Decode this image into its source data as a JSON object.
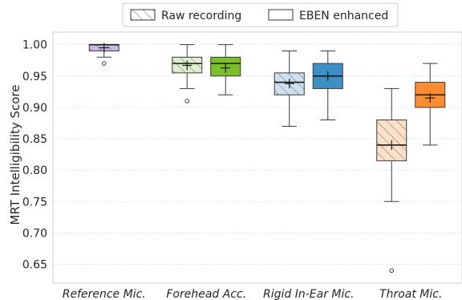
{
  "chart_data": {
    "type": "box",
    "categories": [
      "Reference Mic.",
      "Forehead Acc.",
      "Rigid In-Ear Mic.",
      "Throat Mic."
    ],
    "ylabel": "MRT Intelligibility Score",
    "xlabel": "",
    "ylim": [
      0.62,
      1.02
    ],
    "yticks": [
      0.65,
      0.7,
      0.75,
      0.8,
      0.85,
      0.9,
      0.95,
      1.0
    ],
    "ytick_labels": [
      "0.65",
      "0.70",
      "0.75",
      "0.80",
      "0.85",
      "0.90",
      "0.95",
      "1.00"
    ],
    "grid": "horizontal dotted",
    "legend": {
      "placement": "top-center",
      "entries": [
        {
          "label": "Raw recording",
          "style": "hatched"
        },
        {
          "label": "EBEN enhanced",
          "style": "plain"
        }
      ]
    },
    "boxes": [
      {
        "category": "Reference Mic.",
        "series": "Raw recording",
        "color": "#c9b8e6",
        "whisker_low": 0.98,
        "q1": 0.99,
        "median": 1.0,
        "q3": 1.0,
        "whisker_high": 1.0,
        "mean": 0.995,
        "outliers": [
          0.97
        ]
      },
      {
        "category": "Forehead Acc.",
        "series": "Raw recording",
        "color": "#dff0cf",
        "whisker_low": 0.93,
        "q1": 0.955,
        "median": 0.97,
        "q3": 0.98,
        "whisker_high": 1.0,
        "mean": 0.967,
        "outliers": [
          0.91
        ]
      },
      {
        "category": "Forehead Acc.",
        "series": "EBEN enhanced",
        "color": "#7bbf2a",
        "whisker_low": 0.92,
        "q1": 0.95,
        "median": 0.97,
        "q3": 0.98,
        "whisker_high": 1.0,
        "mean": 0.963,
        "outliers": []
      },
      {
        "category": "Rigid In-Ear Mic.",
        "series": "Raw recording",
        "color": "#cfe1f0",
        "whisker_low": 0.87,
        "q1": 0.92,
        "median": 0.94,
        "q3": 0.955,
        "whisker_high": 0.99,
        "mean": 0.938,
        "outliers": []
      },
      {
        "category": "Rigid In-Ear Mic.",
        "series": "EBEN enhanced",
        "color": "#3d8fc6",
        "whisker_low": 0.88,
        "q1": 0.93,
        "median": 0.95,
        "q3": 0.97,
        "whisker_high": 0.99,
        "mean": 0.95,
        "outliers": []
      },
      {
        "category": "Throat Mic.",
        "series": "Raw recording",
        "color": "#fde0c8",
        "whisker_low": 0.75,
        "q1": 0.815,
        "median": 0.84,
        "q3": 0.88,
        "whisker_high": 0.93,
        "mean": 0.84,
        "outliers": [
          0.64
        ]
      },
      {
        "category": "Throat Mic.",
        "series": "EBEN enhanced",
        "color": "#fb8c33",
        "whisker_low": 0.84,
        "q1": 0.9,
        "median": 0.92,
        "q3": 0.94,
        "whisker_high": 0.97,
        "mean": 0.915,
        "outliers": []
      }
    ]
  }
}
